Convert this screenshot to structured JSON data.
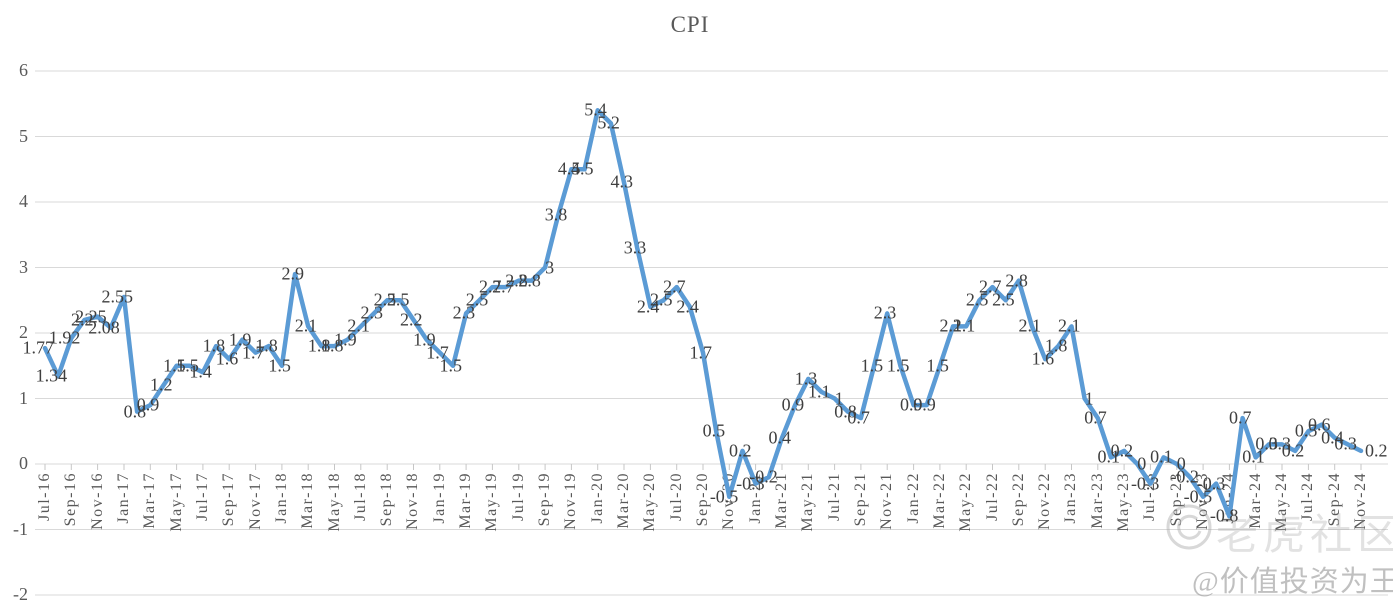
{
  "title": "CPI",
  "watermark": {
    "logo_icon": "tiger-community-logo",
    "community_text": "老虎社区",
    "handle_text": "@价值投资为王"
  },
  "chart_data": {
    "type": "line",
    "title": "CPI",
    "line_color": "#5b9bd5",
    "grid": true,
    "legend": "none",
    "ylim": [
      -2,
      6
    ],
    "yticks": [
      6,
      5,
      4,
      3,
      2,
      1,
      0,
      -1,
      -2
    ],
    "xtick_every": 2,
    "x_label_rotation": 90,
    "months": [
      "Jul-16",
      "Aug-16",
      "Sep-16",
      "Oct-16",
      "Nov-16",
      "Dec-16",
      "Jan-17",
      "Feb-17",
      "Mar-17",
      "Apr-17",
      "May-17",
      "Jun-17",
      "Jul-17",
      "Aug-17",
      "Sep-17",
      "Oct-17",
      "Nov-17",
      "Dec-17",
      "Jan-18",
      "Feb-18",
      "Mar-18",
      "Apr-18",
      "May-18",
      "Jun-18",
      "Jul-18",
      "Aug-18",
      "Sep-18",
      "Oct-18",
      "Nov-18",
      "Dec-18",
      "Jan-19",
      "Feb-19",
      "Mar-19",
      "Apr-19",
      "May-19",
      "Jun-19",
      "Jul-19",
      "Aug-19",
      "Sep-19",
      "Oct-19",
      "Nov-19",
      "Dec-19",
      "Jan-20",
      "Feb-20",
      "Mar-20",
      "Apr-20",
      "May-20",
      "Jun-20",
      "Jul-20",
      "Aug-20",
      "Sep-20",
      "Oct-20",
      "Nov-20",
      "Dec-20",
      "Jan-21",
      "Feb-21",
      "Mar-21",
      "Apr-21",
      "May-21",
      "Jun-21",
      "Jul-21",
      "Aug-21",
      "Sep-21",
      "Oct-21",
      "Nov-21",
      "Dec-21",
      "Jan-22",
      "Feb-22",
      "Mar-22",
      "Apr-22",
      "May-22",
      "Jun-22",
      "Jul-22",
      "Aug-22",
      "Sep-22",
      "Oct-22",
      "Nov-22",
      "Dec-22",
      "Jan-23",
      "Feb-23",
      "Mar-23",
      "Apr-23",
      "May-23",
      "Jun-23",
      "Jul-23",
      "Aug-23",
      "Sep-23",
      "Oct-23",
      "Nov-23",
      "Dec-23",
      "Jan-24",
      "Feb-24",
      "Mar-24",
      "Apr-24",
      "May-24",
      "Jun-24",
      "Jul-24",
      "Aug-24",
      "Sep-24",
      "Oct-24",
      "Nov-24"
    ],
    "values": [
      1.77,
      1.34,
      1.92,
      2.2,
      2.25,
      2.08,
      2.55,
      0.8,
      0.9,
      1.2,
      1.5,
      1.5,
      1.4,
      1.8,
      1.6,
      1.9,
      1.7,
      1.8,
      1.5,
      2.9,
      2.1,
      1.8,
      1.8,
      1.9,
      2.1,
      2.3,
      2.5,
      2.5,
      2.2,
      1.9,
      1.7,
      1.5,
      2.3,
      2.5,
      2.7,
      2.7,
      2.8,
      2.8,
      3,
      3.8,
      4.5,
      4.5,
      5.4,
      5.2,
      4.3,
      3.3,
      2.4,
      2.5,
      2.7,
      2.4,
      1.7,
      0.5,
      -0.5,
      0.2,
      -0.3,
      -0.2,
      0.4,
      0.9,
      1.3,
      1.1,
      1,
      0.8,
      0.7,
      1.5,
      2.3,
      1.5,
      0.9,
      0.9,
      1.5,
      2.1,
      2.1,
      2.5,
      2.7,
      2.5,
      2.8,
      2.1,
      1.6,
      1.8,
      2.1,
      1,
      0.7,
      0.1,
      0.2,
      0,
      -0.3,
      0.1,
      0,
      -0.2,
      -0.5,
      -0.3,
      -0.8,
      0.7,
      0.1,
      0.3,
      0.3,
      0.2,
      0.5,
      0.6,
      0.4,
      0.3,
      0.2
    ]
  }
}
